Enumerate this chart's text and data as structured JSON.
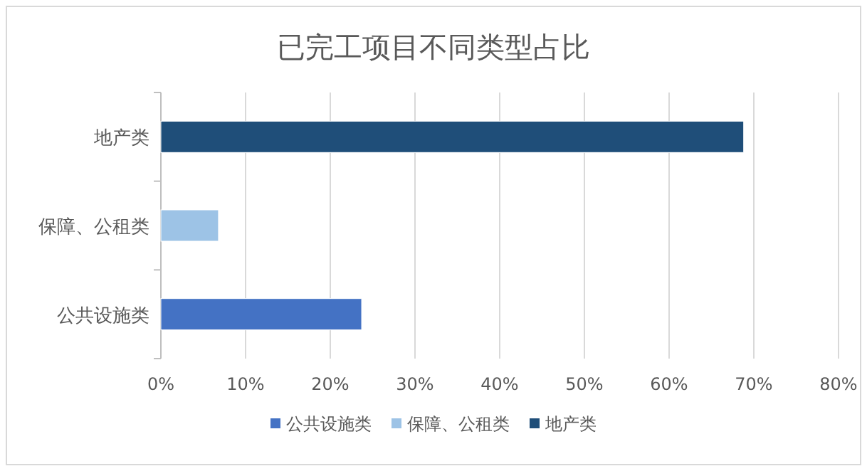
{
  "chart_data": {
    "type": "bar",
    "orientation": "horizontal",
    "stacked": true,
    "title": "已完工项目不同类型占比",
    "categories": [
      "地产类",
      "保障、公租类",
      "公共设施类"
    ],
    "series": [
      {
        "name": "公共设施类",
        "color": "#4472c4",
        "values": [
          null,
          null,
          23.7
        ]
      },
      {
        "name": "保障、公租类",
        "color": "#9dc3e6",
        "values": [
          null,
          6.8,
          null
        ]
      },
      {
        "name": "地产类",
        "color": "#1f4e79",
        "values": [
          68.8,
          null,
          null
        ]
      }
    ],
    "xlim": [
      0,
      80
    ],
    "xticks": [
      {
        "value": 0,
        "label": "0%"
      },
      {
        "value": 10,
        "label": "10%"
      },
      {
        "value": 20,
        "label": "20%"
      },
      {
        "value": 30,
        "label": "30%"
      },
      {
        "value": 40,
        "label": "40%"
      },
      {
        "value": 50,
        "label": "50%"
      },
      {
        "value": 60,
        "label": "60%"
      },
      {
        "value": 70,
        "label": "70%"
      },
      {
        "value": 80,
        "label": "80%"
      }
    ],
    "grid": "x",
    "legend": "bottom"
  }
}
